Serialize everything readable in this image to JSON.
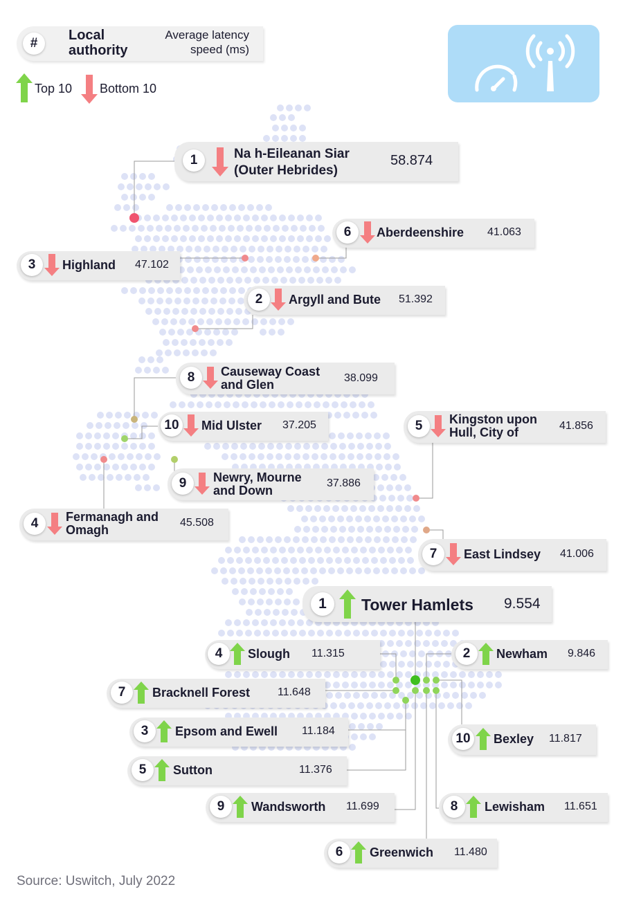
{
  "legend": {
    "hash_symbol": "#",
    "header_local": "Local",
    "header_authority": "authority",
    "header_latency_1": "Average latency",
    "header_latency_2": "speed (ms)",
    "top_label": "Top 10",
    "bottom_label": "Bottom 10"
  },
  "colors": {
    "up_arrow": "#7fd44a",
    "down_arrow": "#f47f82",
    "map_dot": "#dde2f6",
    "red_marker": "#f0546f",
    "green_marker": "#3fbf1f",
    "card_bg": "#ebebeb",
    "icon_bg": "#aedcf8"
  },
  "icon": {
    "name": "latency-tower-icon"
  },
  "bottom10": [
    {
      "rank": "1",
      "name_lines": [
        "Na h-Eileanan Siar",
        "(Outer Hebrides)"
      ],
      "value": "58.874"
    },
    {
      "rank": "6",
      "name_lines": [
        "Aberdeenshire"
      ],
      "value": "41.063"
    },
    {
      "rank": "3",
      "name_lines": [
        "Highland"
      ],
      "value": "47.102"
    },
    {
      "rank": "2",
      "name_lines": [
        "Argyll and Bute"
      ],
      "value": "51.392"
    },
    {
      "rank": "8",
      "name_lines": [
        "Causeway Coast",
        "and Glen"
      ],
      "value": "38.099"
    },
    {
      "rank": "10",
      "name_lines": [
        "Mid Ulster"
      ],
      "value": "37.205"
    },
    {
      "rank": "5",
      "name_lines": [
        "Kingston upon",
        "Hull, City of"
      ],
      "value": "41.856"
    },
    {
      "rank": "9",
      "name_lines": [
        "Newry, Mourne",
        "and Down"
      ],
      "value": "37.886"
    },
    {
      "rank": "4",
      "name_lines": [
        "Fermanagh and",
        "Omagh"
      ],
      "value": "45.508"
    },
    {
      "rank": "7",
      "name_lines": [
        "East Lindsey"
      ],
      "value": "41.006"
    }
  ],
  "top10": [
    {
      "rank": "1",
      "name_lines": [
        "Tower Hamlets"
      ],
      "value": "9.554"
    },
    {
      "rank": "4",
      "name_lines": [
        "Slough"
      ],
      "value": "11.315"
    },
    {
      "rank": "2",
      "name_lines": [
        "Newham"
      ],
      "value": "9.846"
    },
    {
      "rank": "7",
      "name_lines": [
        "Bracknell Forest"
      ],
      "value": "11.648"
    },
    {
      "rank": "3",
      "name_lines": [
        "Epsom and Ewell"
      ],
      "value": "11.184"
    },
    {
      "rank": "10",
      "name_lines": [
        "Bexley"
      ],
      "value": "11.817"
    },
    {
      "rank": "5",
      "name_lines": [
        "Sutton"
      ],
      "value": "11.376"
    },
    {
      "rank": "9",
      "name_lines": [
        "Wandsworth"
      ],
      "value": "11.699"
    },
    {
      "rank": "8",
      "name_lines": [
        "Lewisham"
      ],
      "value": "11.651"
    },
    {
      "rank": "6",
      "name_lines": [
        "Greenwich"
      ],
      "value": "11.480"
    }
  ],
  "source": "Source: Uswitch, July 2022"
}
